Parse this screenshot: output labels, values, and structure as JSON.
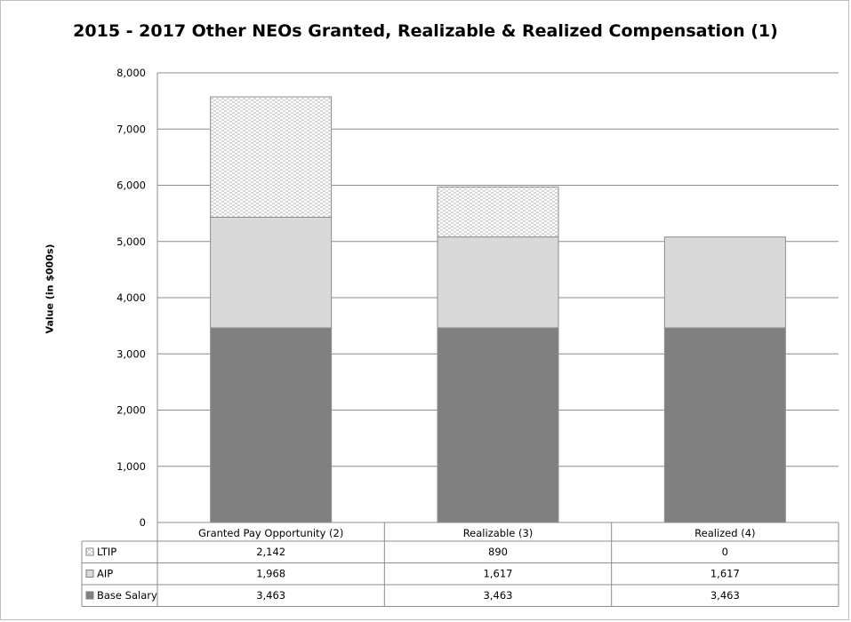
{
  "chart_data": {
    "type": "bar",
    "stacked": true,
    "title": "2015 - 2017 Other NEOs Granted, Realizable & Realized Compensation  (1)",
    "ylabel": "Value  (in $000s)",
    "xlabel": "",
    "ylim": [
      0,
      8000
    ],
    "yticks": [
      0,
      1000,
      2000,
      3000,
      4000,
      5000,
      6000,
      7000,
      8000
    ],
    "ytick_labels": [
      "0",
      "1,000",
      "2,000",
      "3,000",
      "4,000",
      "5,000",
      "6,000",
      "7,000",
      "8,000"
    ],
    "grid": true,
    "legend": "data-table",
    "categories": [
      "Granted Pay Opportunity (2)",
      "Realizable (3)",
      "Realized (4)"
    ],
    "series": [
      {
        "name": "Base Salary",
        "values": [
          3463,
          3463,
          3463
        ],
        "labels": [
          "3,463",
          "3,463",
          "3,463"
        ],
        "color": "#808080"
      },
      {
        "name": "AIP",
        "values": [
          1968,
          1617,
          1617
        ],
        "labels": [
          "1,968",
          "1,617",
          "1,617"
        ],
        "color": "#d9d9d9"
      },
      {
        "name": "LTIP",
        "values": [
          2142,
          890,
          0
        ],
        "labels": [
          "2,142",
          "890",
          "0"
        ],
        "color": "#ffffff",
        "pattern": "dashed"
      }
    ],
    "table_rows": [
      "LTIP",
      "AIP",
      "Base Salary"
    ]
  }
}
